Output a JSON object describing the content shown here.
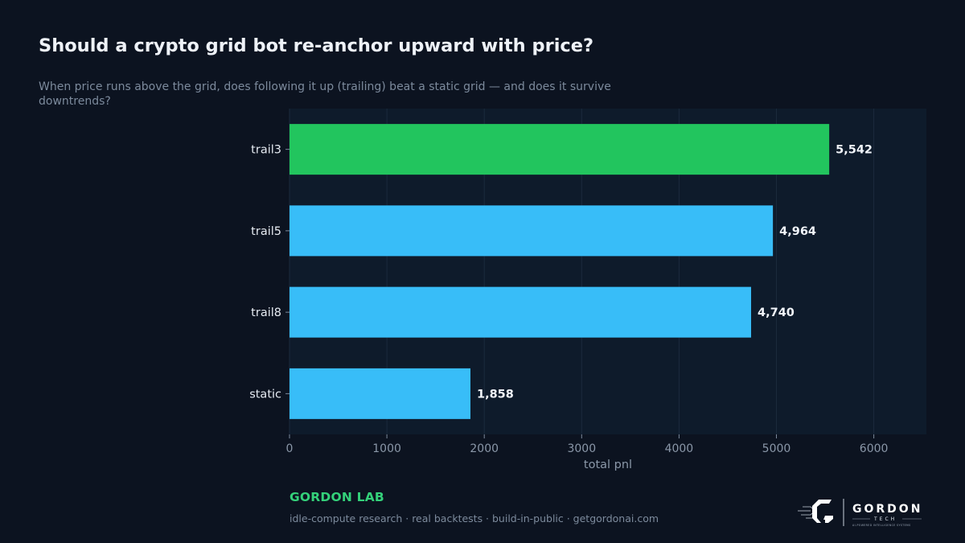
{
  "header": {
    "title": "Should a crypto grid bot re-anchor upward with price?",
    "subtitle": "When price runs above the grid, does following it up (trailing) beat a static grid — and does it survive downtrends?"
  },
  "chart_data": {
    "type": "bar",
    "orientation": "horizontal",
    "categories": [
      "trail3",
      "trail5",
      "trail8",
      "static"
    ],
    "values": [
      5542,
      4964,
      4740,
      1858
    ],
    "value_labels": [
      "5,542",
      "4,964",
      "4,740",
      "1,858"
    ],
    "xlabel": "total pnl",
    "ylabel": "",
    "xlim": [
      0,
      6540
    ],
    "xticks": [
      0,
      1000,
      2000,
      3000,
      4000,
      5000,
      6000
    ],
    "grid": true,
    "highlight_index": 0,
    "colors": {
      "highlight": "#22c55e",
      "default": "#38bdf8",
      "plot_bg": "#0e1b2b",
      "grid": "#1b2a3d"
    }
  },
  "footer": {
    "brand": "GORDON LAB",
    "tagline": "idle-compute research · real backtests · build-in-public · getgordonai.com"
  },
  "logo": {
    "wordmark": "GORDON",
    "sub": "TECH",
    "small": "AI-POWERED INTELLIGENCE SYSTEMS"
  }
}
